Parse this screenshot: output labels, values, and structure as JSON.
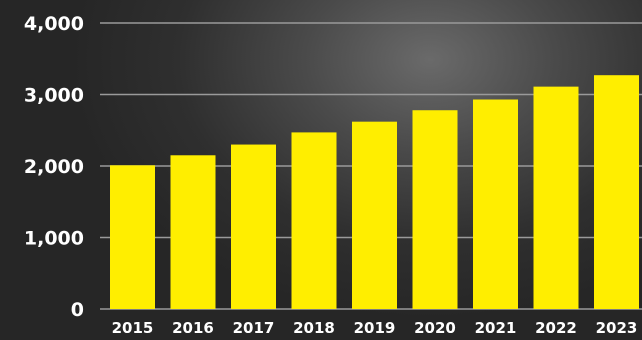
{
  "chart_data": {
    "type": "bar",
    "categories": [
      "2015",
      "2016",
      "2017",
      "2018",
      "2019",
      "2020",
      "2021",
      "2022",
      "2023"
    ],
    "values": [
      2010,
      2150,
      2300,
      2470,
      2620,
      2780,
      2930,
      3110,
      3270
    ],
    "title": "",
    "xlabel": "",
    "ylabel": "",
    "ylim": [
      0,
      4000
    ],
    "yticks": [
      0,
      1000,
      2000,
      3000,
      4000
    ],
    "ytick_labels": [
      "0",
      "1,000",
      "2,000",
      "3,000",
      "4,000"
    ],
    "grid": true,
    "bar_color": "#ffee00",
    "grid_color": "#9a9a9a",
    "text_color": "#ffffff"
  }
}
